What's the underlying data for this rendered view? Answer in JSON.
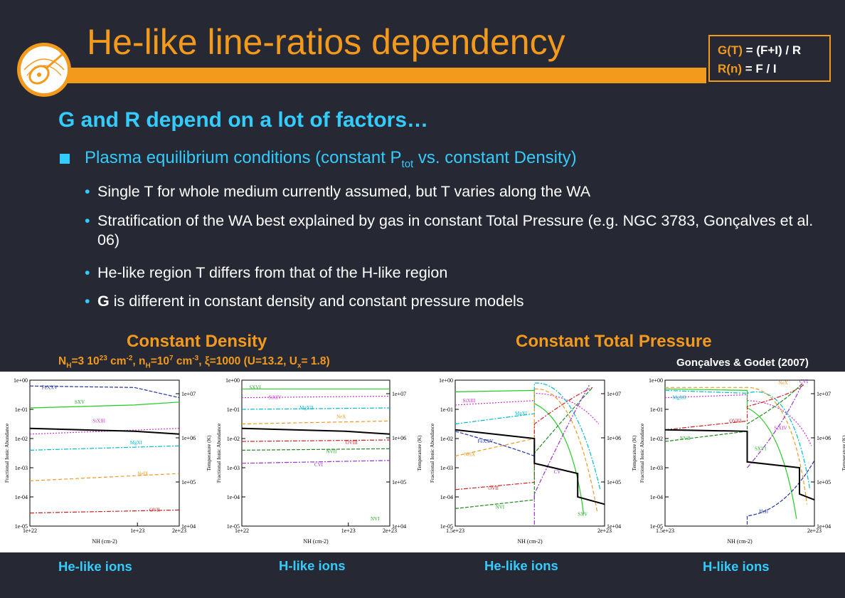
{
  "title": "He-like line-ratios dependency",
  "formula": {
    "g_key": "G(T)",
    "g_val": " = (F+I)  / R",
    "r_key": "R(n)",
    "r_val": " =  F / I"
  },
  "heading": "G and R depend on a lot of factors…",
  "main_bullet": {
    "text_a": "Plasma equilibrium conditions (constant P",
    "sub": "tot",
    "text_b": " vs. constant Density)"
  },
  "sub_bullets": {
    "b1": "Single T for whole medium currently assumed, but T varies along the WA",
    "b2": "Stratification of the WA best explained by gas in constant Total Pressure (e.g. NGC 3783, Gonçalves et al. 06)",
    "b3": "He-like region T differs from that of the H-like region",
    "b4_bold": "G",
    "b4_rest": " is different in constant density and constant pressure models"
  },
  "sections": {
    "density_title": "Constant Density",
    "pressure_title": "Constant Total Pressure",
    "citation": "Gonçalves & Godet (2007)"
  },
  "params": {
    "p1": "N",
    "p1s": "H",
    "p2": "=3 10",
    "p2e": "23",
    "p3": " cm",
    "p3e": "-2",
    "p4": ", n",
    "p4s": "H",
    "p5": "=10",
    "p5e": "7",
    "p6": " cm",
    "p6e": "-3",
    "p7": ", ξ=1000 (U=13.2, U",
    "p7s": "x",
    "p8": "= 1.8)"
  },
  "plots": {
    "ylabel": "Fractional Ionic Abundance",
    "y2label": "Temperature (K)",
    "xlabel": "N",
    "xlabel_sub": "H",
    "xlabel_unit": " (cm",
    "xlabel_exp": "-2",
    "xlabel_end": ")",
    "yticks": [
      "1e+00",
      "1e-01",
      "1e-02",
      "1e-03",
      "1e-04",
      "1e-05"
    ],
    "y2ticks": [
      "1e+07",
      "1e+06",
      "1e+05",
      "1e+04"
    ],
    "p1": {
      "xticks": [
        "1e+22",
        "1e+23",
        "2e+23"
      ],
      "labels": [
        "FeXXV",
        "SXV",
        "SiXIII",
        "MgXI",
        "NeIX",
        "OVII"
      ]
    },
    "p2": {
      "xticks": [
        "1e+22",
        "1e+23",
        "2e+23"
      ],
      "labels": [
        "SXVI",
        "SiXIV",
        "MgXII",
        "NeX",
        "OVIII",
        "NVII",
        "CVI",
        "NVI"
      ]
    },
    "p3": {
      "xticks": [
        "1.5e+23",
        "2e+23"
      ],
      "labels": [
        "SiXIII",
        "MgXI",
        "NeIX",
        "FeXXV",
        "OVII",
        "NVI",
        "CV",
        "SXV"
      ]
    },
    "p4": {
      "xticks": [
        "1.5e+23",
        "2e+23"
      ],
      "labels": [
        "NeX",
        "CVI",
        "MgXII",
        "OVIII",
        "NVII",
        "SiXIV",
        "SXVI",
        "HeII"
      ]
    }
  },
  "captions": {
    "c1": "He-like ions",
    "c2": "H-like ions",
    "c3": "He-like ions",
    "c4": "H-like ions"
  }
}
